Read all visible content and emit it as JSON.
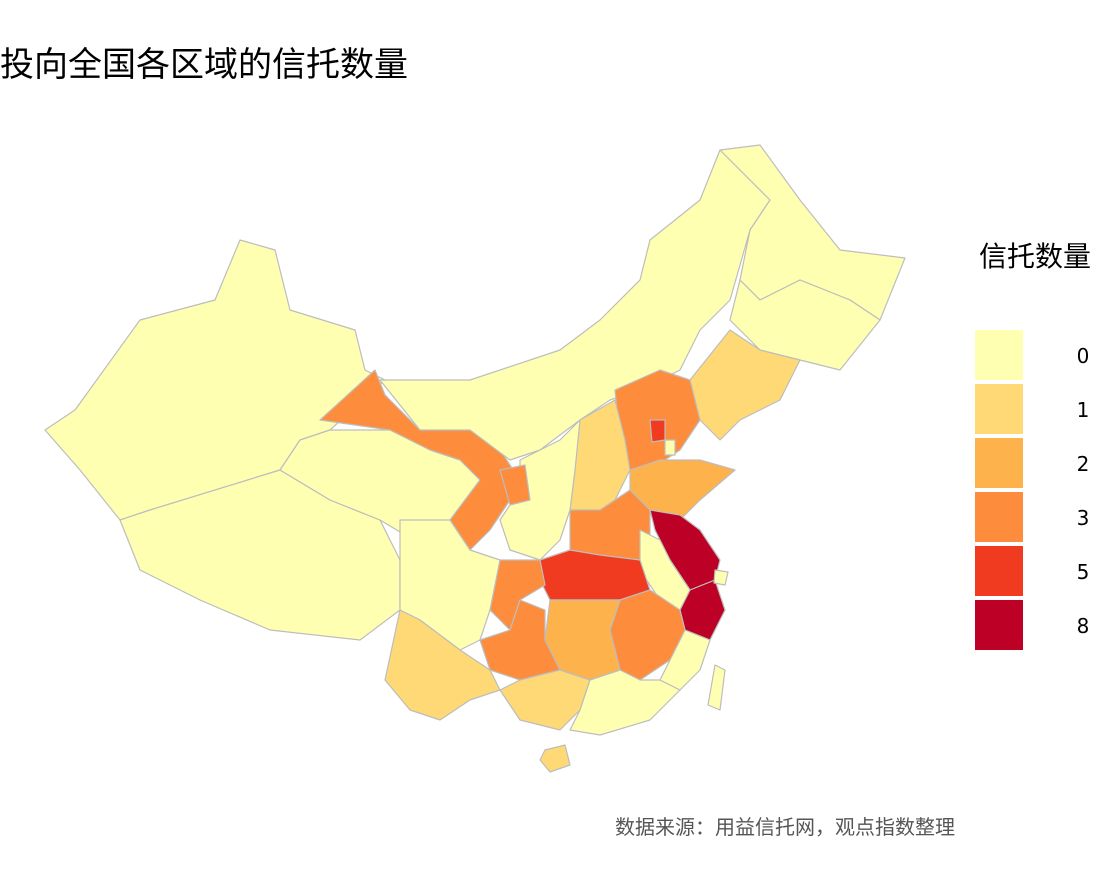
{
  "chart_data": {
    "type": "choropleth",
    "title": "投向全国各区域的信托数量",
    "legend_title": "信托数量",
    "legend": {
      "values": [
        0,
        1,
        2,
        3,
        5,
        8
      ],
      "colors": [
        "#ffffb2",
        "#fed976",
        "#feb24c",
        "#fd8d3c",
        "#f03b20",
        "#bd0026"
      ]
    },
    "values": [
      0,
      0,
      0,
      3,
      0,
      0,
      0,
      1,
      3,
      5,
      1,
      0,
      3,
      2,
      3,
      8,
      0,
      5,
      3,
      0,
      8,
      0,
      3,
      2,
      3,
      1,
      1,
      0,
      0,
      1,
      0,
      0
    ],
    "source": "数据来源：用益信托网，观点指数整理"
  }
}
